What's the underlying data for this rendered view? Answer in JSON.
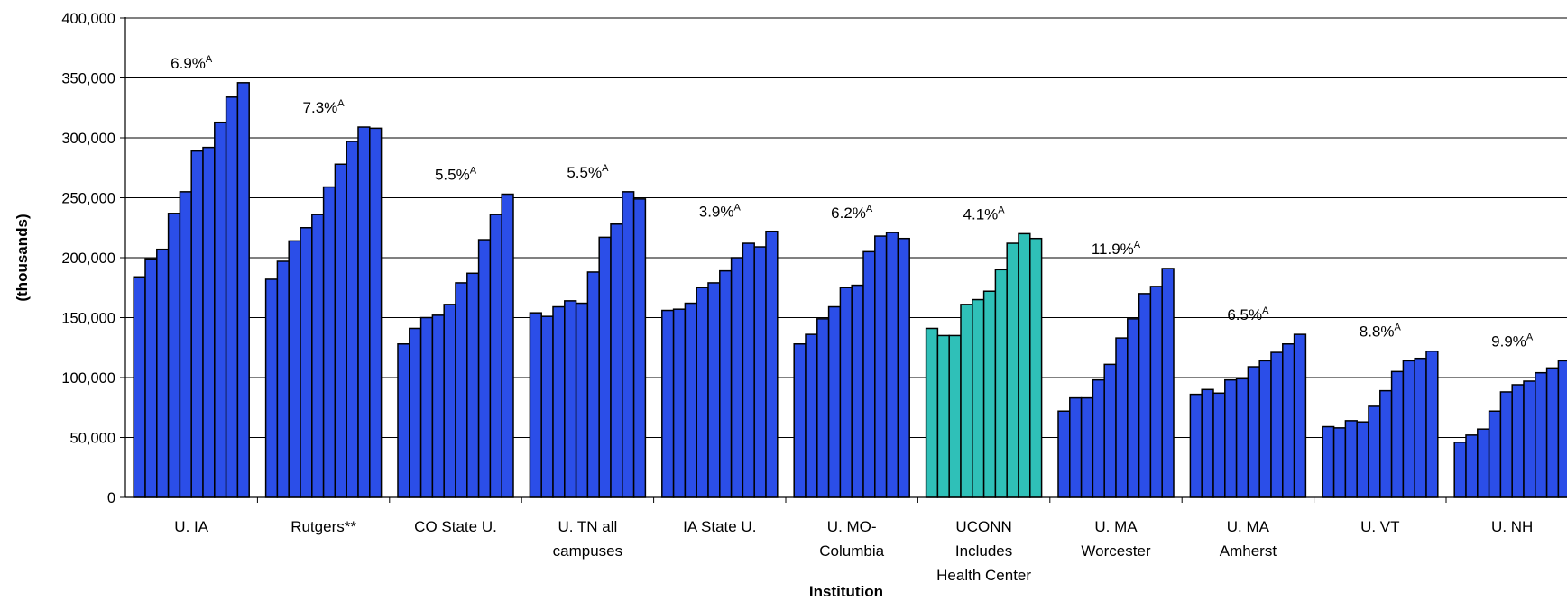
{
  "chart_data": {
    "type": "bar",
    "title": "",
    "xlabel": "Institution",
    "ylabel": "(thousands)",
    "ylim": [
      0,
      400000
    ],
    "yticks": [
      "0",
      "50,000",
      "100,000",
      "150,000",
      "200,000",
      "250,000",
      "300,000",
      "350,000",
      "400,000"
    ],
    "grid": true,
    "highlight_color": "#2fc0b8",
    "default_color": "#2b4ee8",
    "categories": [
      {
        "label": [
          "U. IA"
        ],
        "annotation": "6.9%",
        "annotation_sup": "A",
        "highlight": false,
        "values": [
          184000,
          199000,
          207000,
          237000,
          255000,
          289000,
          292000,
          313000,
          334000,
          346000
        ]
      },
      {
        "label": [
          "Rutgers**"
        ],
        "annotation": "7.3%",
        "annotation_sup": "A",
        "highlight": false,
        "values": [
          182000,
          197000,
          214000,
          225000,
          236000,
          259000,
          278000,
          297000,
          309000,
          308000
        ]
      },
      {
        "label": [
          "CO State U."
        ],
        "annotation": "5.5%",
        "annotation_sup": "A",
        "highlight": false,
        "values": [
          128000,
          141000,
          150000,
          152000,
          161000,
          179000,
          187000,
          215000,
          236000,
          253000
        ]
      },
      {
        "label": [
          "U. TN all",
          "campuses"
        ],
        "annotation": "5.5%",
        "annotation_sup": "A",
        "highlight": false,
        "values": [
          154000,
          151000,
          159000,
          164000,
          162000,
          188000,
          217000,
          228000,
          255000,
          249000
        ]
      },
      {
        "label": [
          "IA State U."
        ],
        "annotation": "3.9%",
        "annotation_sup": "A",
        "highlight": false,
        "values": [
          156000,
          157000,
          162000,
          175000,
          179000,
          189000,
          200000,
          212000,
          209000,
          222000
        ]
      },
      {
        "label": [
          "U. MO-",
          "Columbia"
        ],
        "annotation": "6.2%",
        "annotation_sup": "A",
        "highlight": false,
        "values": [
          128000,
          136000,
          149000,
          159000,
          175000,
          177000,
          205000,
          218000,
          221000,
          216000
        ]
      },
      {
        "label": [
          "UCONN",
          "Includes",
          "Health Center"
        ],
        "annotation": "4.1%",
        "annotation_sup": "A",
        "highlight": true,
        "values": [
          141000,
          135000,
          135000,
          161000,
          165000,
          172000,
          190000,
          212000,
          220000,
          216000
        ]
      },
      {
        "label": [
          "U. MA",
          "Worcester"
        ],
        "annotation": "11.9%",
        "annotation_sup": "A",
        "highlight": false,
        "values": [
          72000,
          83000,
          83000,
          98000,
          111000,
          133000,
          149000,
          170000,
          176000,
          191000
        ]
      },
      {
        "label": [
          "U. MA",
          "Amherst"
        ],
        "annotation": "6.5%",
        "annotation_sup": "A",
        "highlight": false,
        "values": [
          86000,
          90000,
          87000,
          98000,
          99000,
          109000,
          114000,
          121000,
          128000,
          136000
        ]
      },
      {
        "label": [
          "U. VT"
        ],
        "annotation": "8.8%",
        "annotation_sup": "A",
        "highlight": false,
        "values": [
          59000,
          58000,
          64000,
          63000,
          76000,
          89000,
          105000,
          114000,
          116000,
          122000
        ]
      },
      {
        "label": [
          "U. NH"
        ],
        "annotation": "9.9%",
        "annotation_sup": "A",
        "highlight": false,
        "values": [
          46000,
          52000,
          57000,
          72000,
          88000,
          94000,
          97000,
          104000,
          108000,
          114000
        ]
      }
    ]
  }
}
